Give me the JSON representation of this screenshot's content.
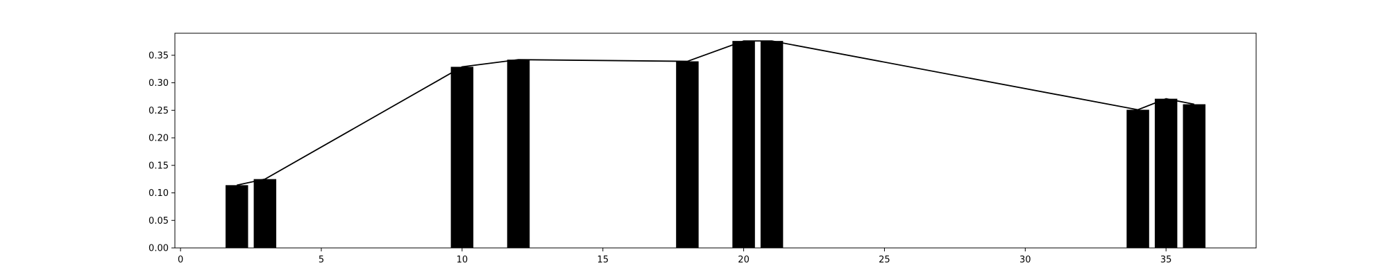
{
  "chart_data": {
    "type": "bar",
    "title": "",
    "xlabel": "",
    "ylabel": "",
    "xlim": [
      -0.2,
      38.2
    ],
    "ylim": [
      0,
      0.39
    ],
    "grid": false,
    "legend": "none",
    "x": [
      2,
      3,
      10,
      12,
      18,
      20,
      21,
      34,
      35,
      36
    ],
    "values": [
      0.114,
      0.125,
      0.329,
      0.342,
      0.339,
      0.376,
      0.376,
      0.251,
      0.271,
      0.261
    ],
    "line_overlay": true,
    "xticks": [
      {
        "value": 0,
        "label": "0"
      },
      {
        "value": 5,
        "label": "5"
      },
      {
        "value": 10,
        "label": "10"
      },
      {
        "value": 15,
        "label": "15"
      },
      {
        "value": 20,
        "label": "20"
      },
      {
        "value": 25,
        "label": "25"
      },
      {
        "value": 30,
        "label": "30"
      },
      {
        "value": 35,
        "label": "35"
      }
    ],
    "yticks": [
      {
        "value": 0.0,
        "label": "0.00"
      },
      {
        "value": 0.05,
        "label": "0.05"
      },
      {
        "value": 0.1,
        "label": "0.10"
      },
      {
        "value": 0.15,
        "label": "0.15"
      },
      {
        "value": 0.2,
        "label": "0.20"
      },
      {
        "value": 0.25,
        "label": "0.25"
      },
      {
        "value": 0.3,
        "label": "0.30"
      },
      {
        "value": 0.35,
        "label": "0.35"
      }
    ],
    "colors": {
      "bar": "#000000",
      "line": "#000000",
      "axis": "#000000"
    }
  }
}
